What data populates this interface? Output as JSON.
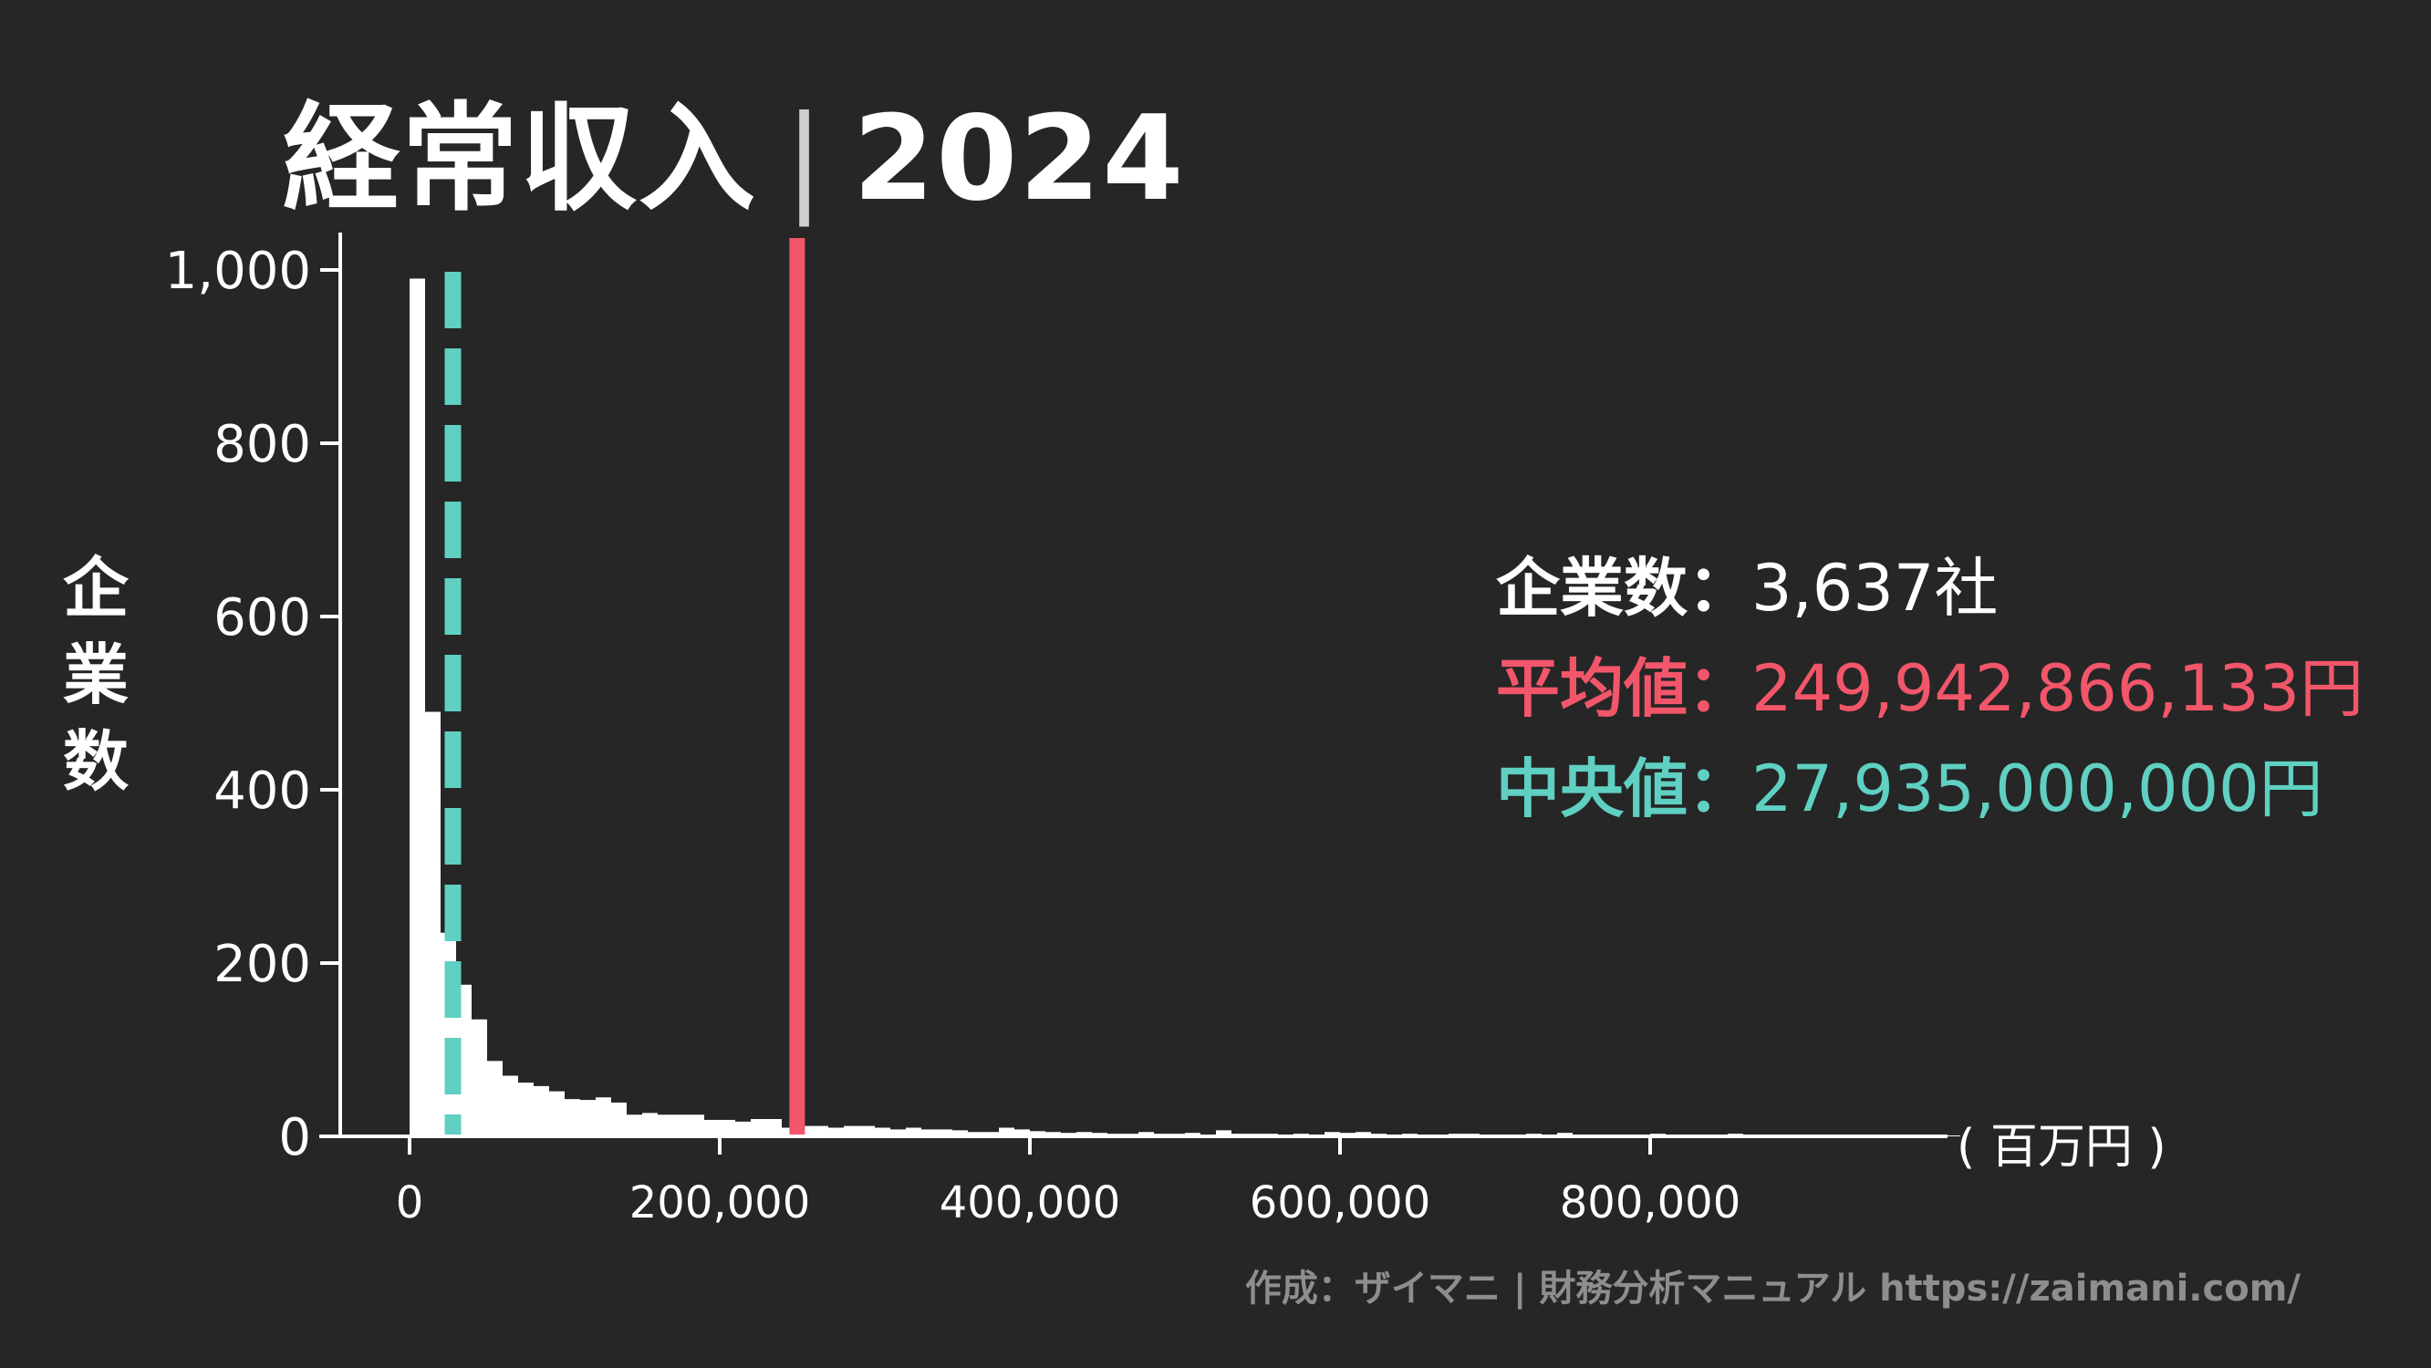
{
  "title": {
    "main": "経常収入",
    "separator": "|",
    "year": "2024"
  },
  "y_axis_label": [
    "企",
    "業",
    "数"
  ],
  "x_unit": "( 百万円 )",
  "stats": {
    "count_label": "企業数：",
    "count_value": "3,637社",
    "mean_label": "平均値：",
    "mean_value": "249,942,866,133円",
    "median_label": "中央値：",
    "median_value": "27,935,000,000円"
  },
  "credit": "作成：ザイマニ | 財務分析マニュアル https://zaimani.com/",
  "colors": {
    "background": "#262626",
    "bars": "#ffffff",
    "mean": "#f2566a",
    "median": "#5fd0c2",
    "axis": "#ffffff"
  },
  "chart_data": {
    "type": "bar",
    "subtype": "histogram",
    "bin_start": 0,
    "bin_width": 10000,
    "values": [
      990,
      490,
      235,
      175,
      135,
      87,
      70,
      62,
      58,
      52,
      43,
      42,
      45,
      39,
      25,
      27,
      25,
      25,
      25,
      19,
      19,
      17,
      20,
      20,
      10,
      12,
      12,
      10,
      12,
      12,
      10,
      8,
      10,
      8,
      8,
      7,
      5,
      5,
      10,
      8,
      6,
      5,
      4,
      5,
      4,
      3,
      3,
      5,
      3,
      3,
      4,
      2,
      7,
      3,
      3,
      3,
      2,
      3,
      2,
      5,
      4,
      5,
      3,
      2,
      3,
      2,
      2,
      3,
      3,
      2,
      2,
      2,
      3,
      2,
      4,
      2,
      2,
      2,
      2,
      2,
      3,
      2,
      2,
      2,
      2,
      3,
      2,
      1,
      1,
      2,
      2,
      1,
      1,
      1,
      1,
      1,
      1,
      1,
      1,
      1
    ],
    "xlim": [
      -12000,
      985000
    ],
    "ylim": [
      0,
      1040
    ],
    "x_ticks": [
      0,
      200000,
      400000,
      600000,
      800000
    ],
    "x_tick_labels": [
      "0",
      "200,000",
      "400,000",
      "600,000",
      "800,000"
    ],
    "y_ticks": [
      0,
      200,
      400,
      600,
      800,
      1000
    ],
    "y_tick_labels": [
      "0",
      "200",
      "400",
      "600",
      "800",
      "1,000"
    ],
    "xlabel": "( 百万円 )",
    "ylabel": "企業数",
    "mean_line": 249942.866133,
    "median_line": 27935,
    "grid": false
  }
}
